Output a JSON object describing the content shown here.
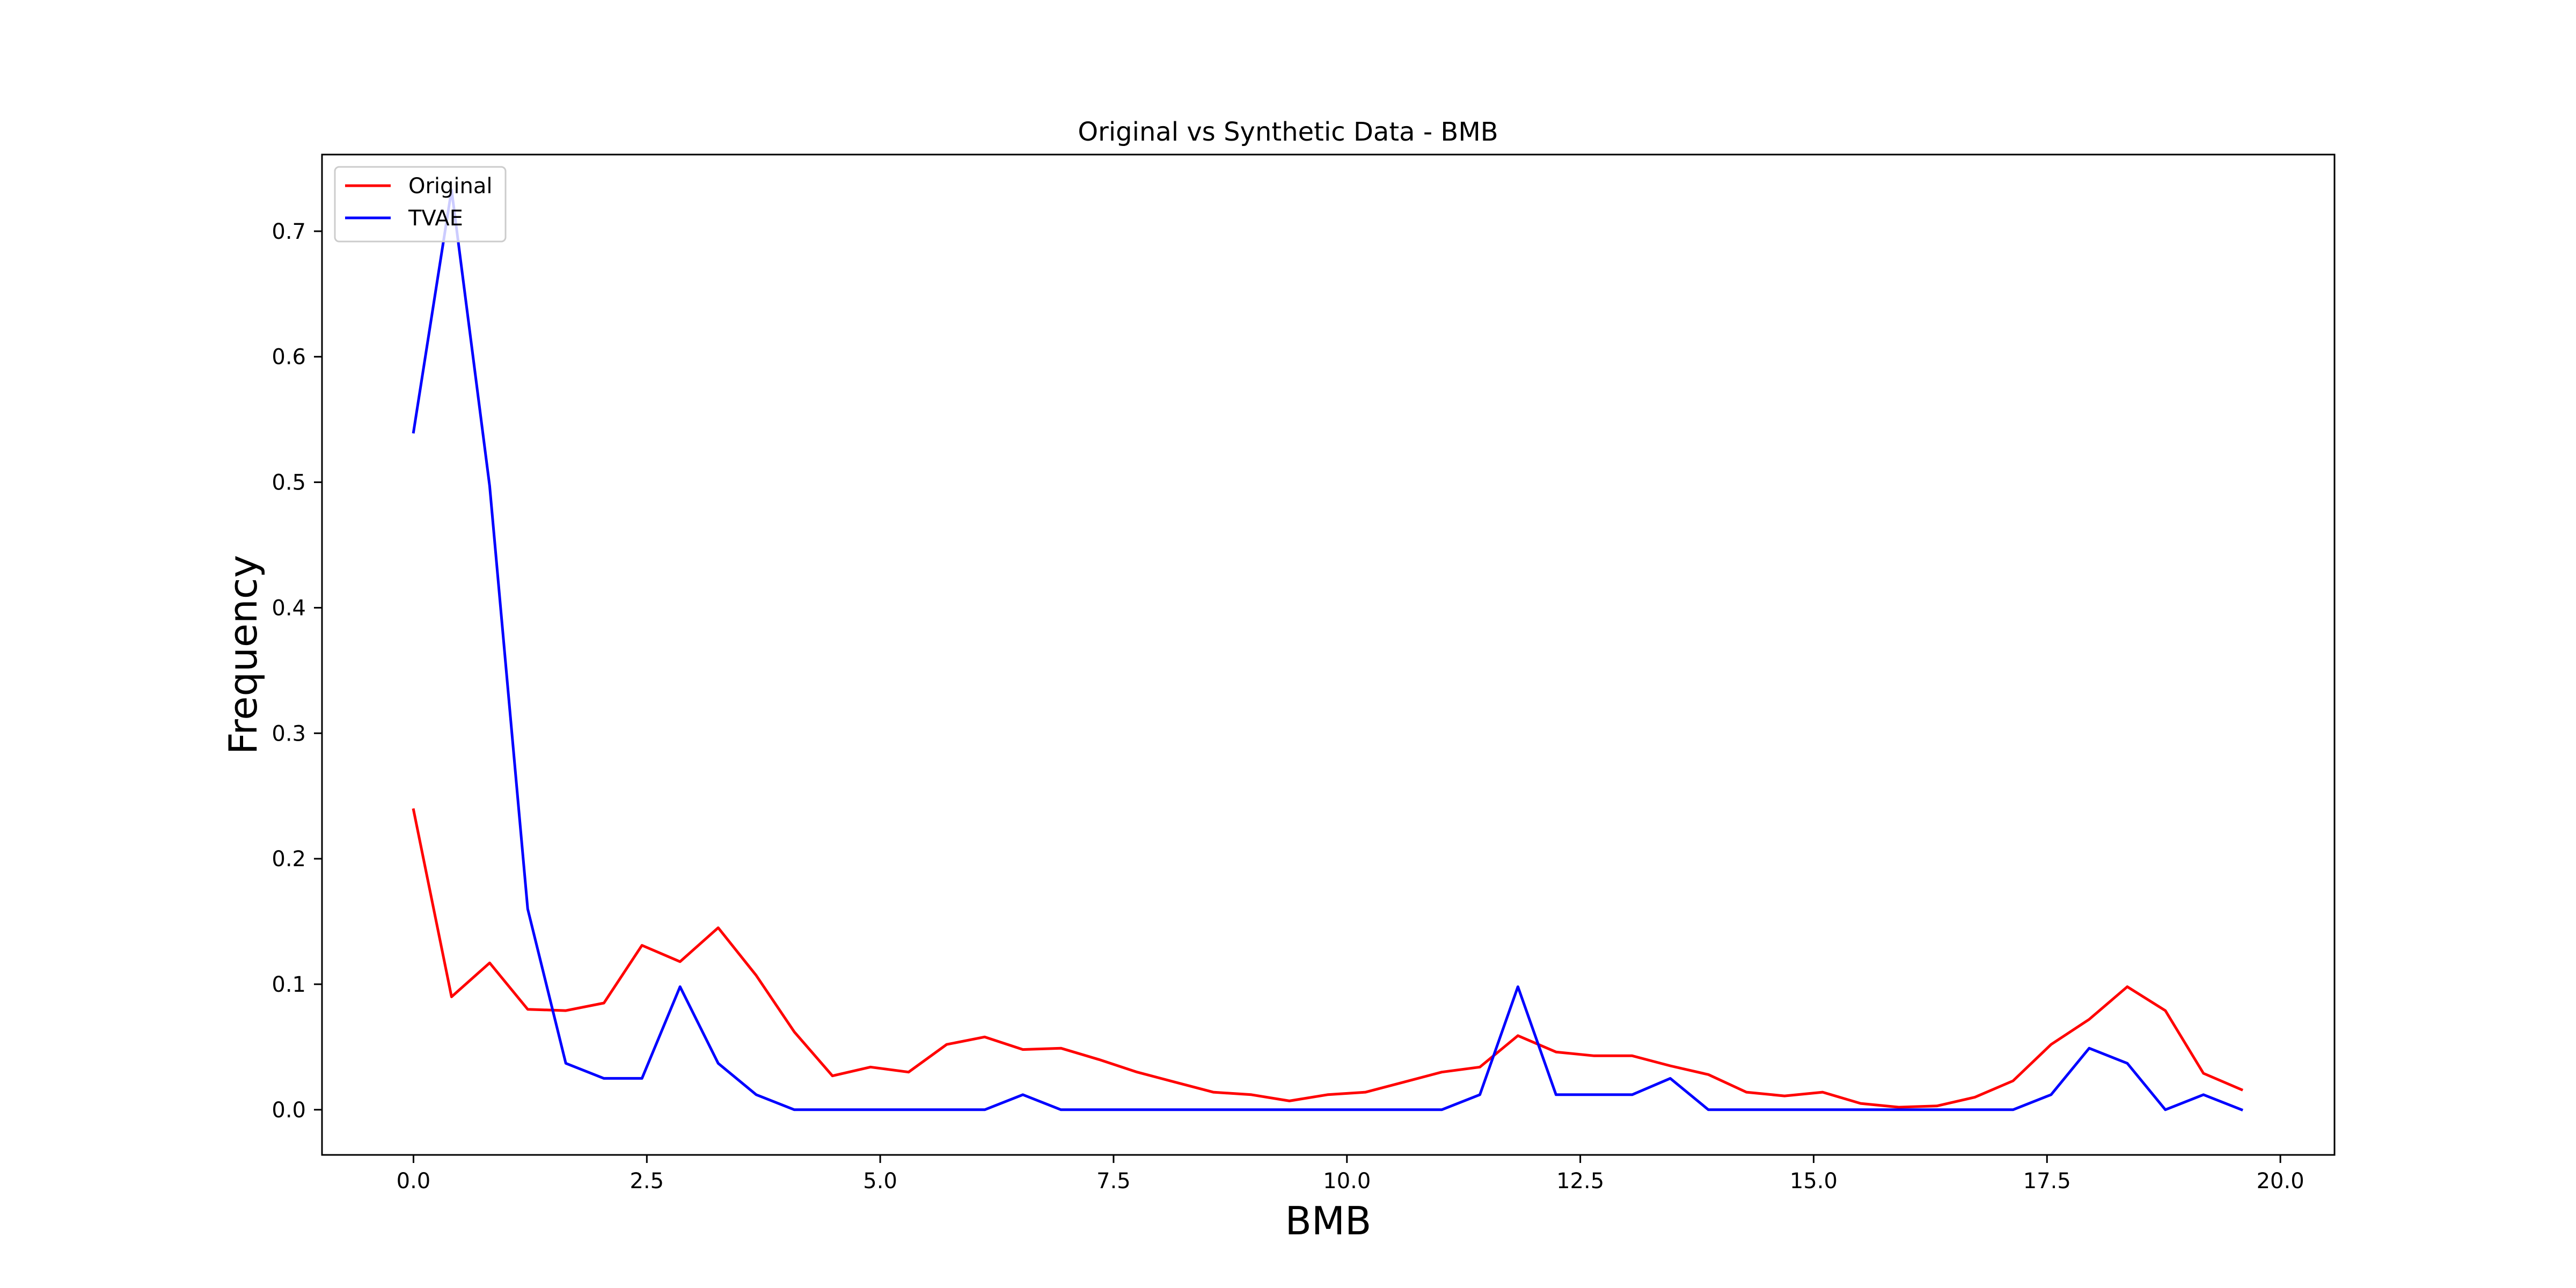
{
  "chart_data": {
    "type": "line",
    "title": "Original vs Synthetic Data - BMB",
    "xlabel": "BMB",
    "ylabel": "Frequency",
    "xlim": [
      -0.98,
      20.58
    ],
    "ylim": [
      -0.036,
      0.7611
    ],
    "xticks": [
      {
        "value": 0.0,
        "label": "0.0"
      },
      {
        "value": 2.5,
        "label": "2.5"
      },
      {
        "value": 5.0,
        "label": "5.0"
      },
      {
        "value": 7.5,
        "label": "7.5"
      },
      {
        "value": 10.0,
        "label": "10.0"
      },
      {
        "value": 12.5,
        "label": "12.5"
      },
      {
        "value": 15.0,
        "label": "15.0"
      },
      {
        "value": 17.5,
        "label": "17.5"
      },
      {
        "value": 20.0,
        "label": "20.0"
      }
    ],
    "yticks": [
      {
        "value": 0.0,
        "label": "0.0"
      },
      {
        "value": 0.1,
        "label": "0.1"
      },
      {
        "value": 0.2,
        "label": "0.2"
      },
      {
        "value": 0.3,
        "label": "0.3"
      },
      {
        "value": 0.4,
        "label": "0.4"
      },
      {
        "value": 0.5,
        "label": "0.5"
      },
      {
        "value": 0.6,
        "label": "0.6"
      },
      {
        "value": 0.7,
        "label": "0.7"
      }
    ],
    "grid": false,
    "legend": "top-left",
    "x": [
      0.0,
      0.408,
      0.816,
      1.224,
      1.632,
      2.04,
      2.448,
      2.856,
      3.264,
      3.672,
      4.08,
      4.488,
      4.896,
      5.304,
      5.712,
      6.12,
      6.528,
      6.936,
      7.344,
      7.752,
      8.16,
      8.568,
      8.976,
      9.384,
      9.792,
      10.2,
      10.608,
      11.016,
      11.424,
      11.832,
      12.24,
      12.648,
      13.056,
      13.464,
      13.872,
      14.28,
      14.688,
      15.096,
      15.504,
      15.912,
      16.32,
      16.728,
      17.136,
      17.544,
      17.952,
      18.36,
      18.768,
      19.176,
      19.584
    ],
    "series": [
      {
        "name": "Original",
        "color": "#ff0000",
        "values": [
          0.239,
          0.09,
          0.117,
          0.08,
          0.079,
          0.085,
          0.131,
          0.118,
          0.145,
          0.107,
          0.062,
          0.027,
          0.034,
          0.03,
          0.052,
          0.058,
          0.048,
          0.049,
          0.04,
          0.03,
          0.022,
          0.014,
          0.012,
          0.007,
          0.012,
          0.014,
          0.022,
          0.03,
          0.034,
          0.059,
          0.046,
          0.043,
          0.043,
          0.035,
          0.028,
          0.014,
          0.011,
          0.014,
          0.005,
          0.002,
          0.003,
          0.01,
          0.023,
          0.052,
          0.072,
          0.098,
          0.079,
          0.029,
          0.016
        ]
      },
      {
        "name": "TVAE",
        "color": "#0000ff",
        "values": [
          0.54,
          0.733,
          0.497,
          0.16,
          0.037,
          0.025,
          0.025,
          0.098,
          0.037,
          0.012,
          0.0,
          0.0,
          0.0,
          0.0,
          0.0,
          0.0,
          0.012,
          0.0,
          0.0,
          0.0,
          0.0,
          0.0,
          0.0,
          0.0,
          0.0,
          0.0,
          0.0,
          0.0,
          0.012,
          0.098,
          0.012,
          0.012,
          0.012,
          0.025,
          0.0,
          0.0,
          0.0,
          0.0,
          0.0,
          0.0,
          0.0,
          0.0,
          0.0,
          0.012,
          0.049,
          0.037,
          0.0,
          0.012,
          0.0
        ]
      }
    ]
  }
}
